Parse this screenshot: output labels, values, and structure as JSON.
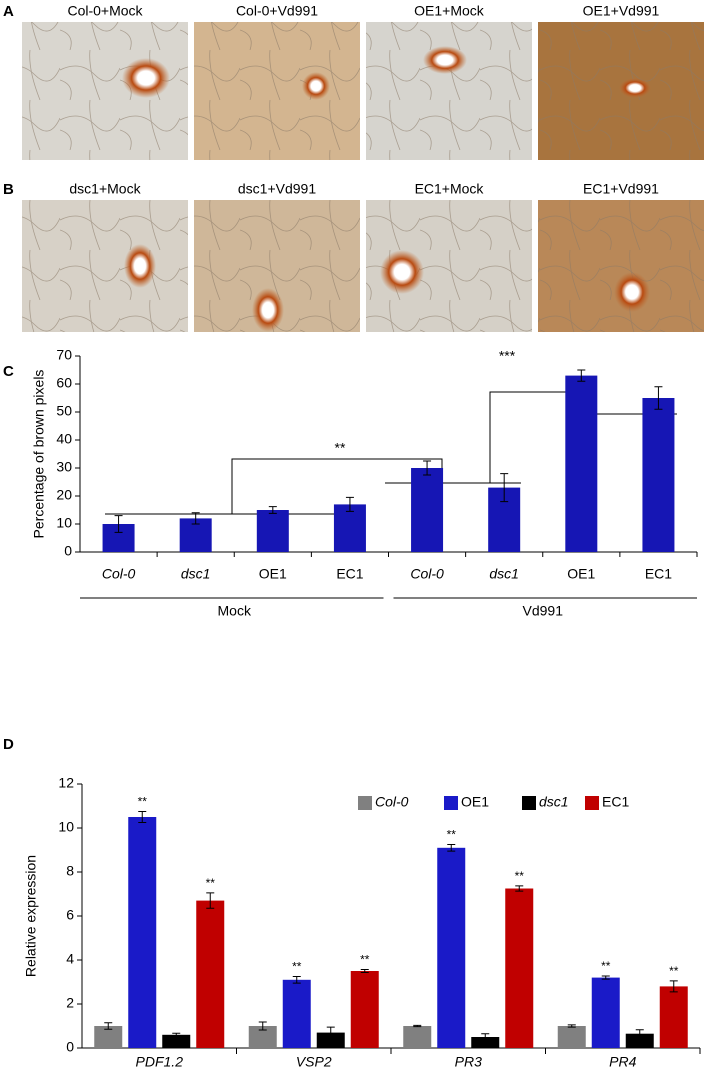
{
  "panels": [
    {
      "label": "A",
      "images": [
        {
          "label": "Col-0+Mock"
        },
        {
          "label": "Col-0+Vd991"
        },
        {
          "label": "OE1+Mock"
        },
        {
          "label": "OE1+Vd991"
        }
      ]
    },
    {
      "label": "B",
      "images": [
        {
          "label": "dsc1+Mock"
        },
        {
          "label": "dsc1+Vd991"
        },
        {
          "label": "EC1+Mock"
        },
        {
          "label": "EC1+Vd991"
        }
      ]
    }
  ],
  "chart_data": [
    {
      "type": "bar",
      "panel_label": "C",
      "ylabel": "Percentage of brown pixels",
      "categories": [
        "Col-0",
        "dsc1",
        "OE1",
        "EC1",
        "Col-0",
        "dsc1",
        "OE1",
        "EC1"
      ],
      "groups": [
        "Mock",
        "Vd991"
      ],
      "values": [
        10,
        12,
        15,
        17,
        30,
        23,
        63,
        55
      ],
      "errors": [
        3,
        2,
        1.2,
        2.5,
        2.5,
        5,
        2,
        4
      ],
      "color": "#1616b4",
      "ylim": [
        0,
        70
      ],
      "yticks": [
        0,
        10,
        20,
        30,
        40,
        50,
        60,
        70
      ],
      "annotations": [
        "**",
        "***"
      ]
    },
    {
      "type": "grouped_bar",
      "panel_label": "D",
      "ylabel": "Relative expression",
      "categories": [
        "PDF1.2",
        "VSP2",
        "PR3",
        "PR4"
      ],
      "series": [
        {
          "name": "Col-0",
          "color": "#808080",
          "values": [
            1.0,
            1.0,
            1.0,
            1.0
          ],
          "errors": [
            0.15,
            0.18,
            0.03,
            0.05
          ]
        },
        {
          "name": "OE1",
          "color": "#1a1ac8",
          "values": [
            10.5,
            3.1,
            9.1,
            3.2
          ],
          "errors": [
            0.25,
            0.15,
            0.15,
            0.07
          ],
          "labels": [
            "**",
            "**",
            "**",
            "**"
          ]
        },
        {
          "name": "dsc1",
          "color": "#000000",
          "values": [
            0.6,
            0.7,
            0.5,
            0.65
          ],
          "errors": [
            0.07,
            0.25,
            0.15,
            0.18
          ]
        },
        {
          "name": "EC1",
          "color": "#c00000",
          "values": [
            6.7,
            3.5,
            7.25,
            2.8
          ],
          "errors": [
            0.35,
            0.07,
            0.12,
            0.25
          ],
          "labels": [
            "**",
            "**",
            "**",
            "**"
          ]
        }
      ],
      "ylim": [
        0,
        12
      ],
      "yticks": [
        0,
        2,
        4,
        6,
        8,
        10,
        12
      ],
      "legend": "upper right"
    }
  ]
}
